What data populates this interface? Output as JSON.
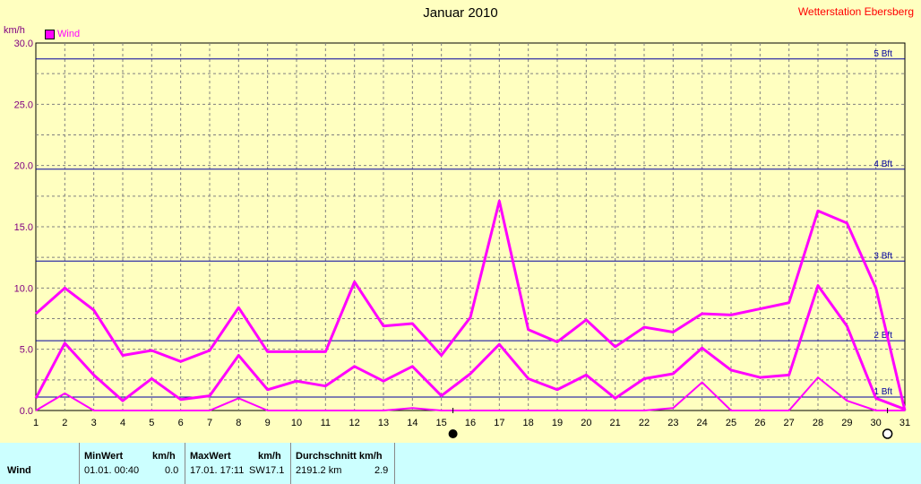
{
  "header": {
    "title": "Januar 2010",
    "station": "Wetterstation Ebersberg",
    "unit": "km/h"
  },
  "legend": {
    "label": "Wind",
    "color": "#FF00FF"
  },
  "colors": {
    "background": "#FFFFC0",
    "series": "#FF00FF",
    "beaufort_line": "#0000A0",
    "grid": "#808080",
    "table_background": "#CCFFFF"
  },
  "chart_data": {
    "type": "line",
    "x": [
      1,
      2,
      3,
      4,
      5,
      6,
      7,
      8,
      9,
      10,
      11,
      12,
      13,
      14,
      15,
      16,
      17,
      18,
      19,
      20,
      21,
      22,
      23,
      24,
      25,
      26,
      27,
      28,
      29,
      30,
      31
    ],
    "xlim": [
      1,
      31
    ],
    "ylim": [
      0,
      30
    ],
    "y_ticks": [
      "0.0",
      "5.0",
      "10.0",
      "15.0",
      "20.0",
      "25.0",
      "30.0"
    ],
    "x_ticks": [
      "1",
      "2",
      "3",
      "4",
      "5",
      "6",
      "7",
      "8",
      "9",
      "10",
      "11",
      "12",
      "13",
      "14",
      "15",
      "16",
      "17",
      "18",
      "19",
      "20",
      "21",
      "22",
      "23",
      "24",
      "25",
      "26",
      "27",
      "28",
      "29",
      "30",
      "31"
    ],
    "ylabel": "km/h",
    "grid": true,
    "series": [
      {
        "name": "Wind",
        "style": "max",
        "values": [
          7.9,
          10.0,
          8.2,
          4.5,
          4.9,
          4.0,
          4.9,
          8.4,
          4.8,
          4.8,
          4.8,
          10.5,
          6.9,
          7.1,
          4.5,
          7.6,
          17.1,
          6.6,
          5.6,
          7.4,
          5.2,
          6.8,
          6.4,
          7.9,
          7.8,
          8.3,
          8.8,
          16.3,
          15.3,
          10.0,
          0.0
        ]
      },
      {
        "name": "Wind",
        "style": "mean",
        "values": [
          1.0,
          5.5,
          2.9,
          0.8,
          2.6,
          0.9,
          1.2,
          4.5,
          1.7,
          2.4,
          2.0,
          3.6,
          2.4,
          3.6,
          1.2,
          3.0,
          5.4,
          2.6,
          1.7,
          2.9,
          1.0,
          2.6,
          3.0,
          5.1,
          3.3,
          2.7,
          2.9,
          10.2,
          6.9,
          1.0,
          0.1
        ]
      },
      {
        "name": "Wind",
        "style": "min",
        "values": [
          0.0,
          1.4,
          0.0,
          0.0,
          0.0,
          0.0,
          0.0,
          1.0,
          0.0,
          0.0,
          0.0,
          0.0,
          0.0,
          0.2,
          0.0,
          0.0,
          0.0,
          0.0,
          0.0,
          0.0,
          0.0,
          0.0,
          0.2,
          2.3,
          0.0,
          0.0,
          0.0,
          2.7,
          0.8,
          0.0,
          0.0
        ]
      }
    ],
    "beaufort_lines": [
      {
        "label": "1 Bft",
        "value": 1.1
      },
      {
        "label": "2 Bft",
        "value": 5.7
      },
      {
        "label": "3 Bft",
        "value": 12.2
      },
      {
        "label": "4 Bft",
        "value": 19.7
      },
      {
        "label": "5 Bft",
        "value": 28.7
      }
    ],
    "moon_markers": [
      {
        "type": "new-moon",
        "day": 15.4
      },
      {
        "type": "full-moon",
        "day": 30.4
      }
    ]
  },
  "table": {
    "row_label": "Wind",
    "min_header": "MinWert",
    "min_unit": "km/h",
    "min_time": "01.01.  00:40",
    "min_value": "0.0",
    "max_header": "MaxWert",
    "max_unit": "km/h",
    "max_time": "17.01.  17:11",
    "max_dir": "SW",
    "max_value": "17.1",
    "avg_header": "Durchschnitt km/h",
    "avg_distance": "2191.2 km",
    "avg_value": "2.9"
  }
}
